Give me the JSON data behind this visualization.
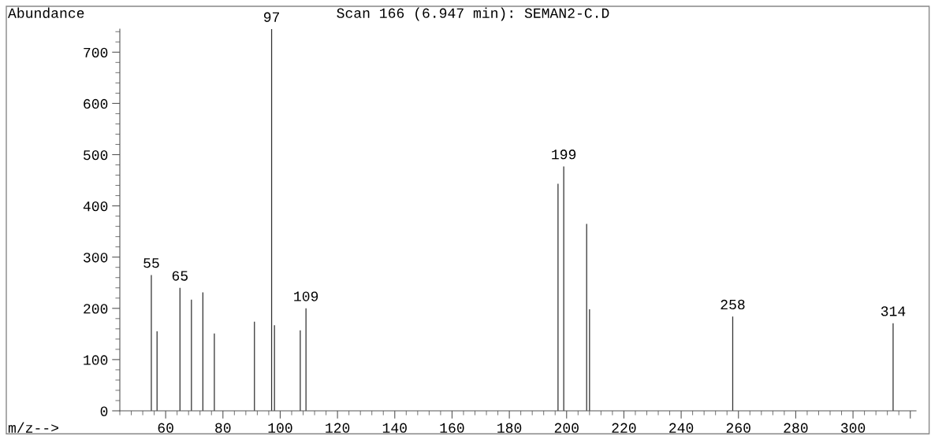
{
  "chart_data": {
    "type": "bar",
    "title": "Scan 166 (6.947 min): SEMAN2-C.D",
    "xlabel": "m/z-->",
    "ylabel": "Abundance",
    "x": [
      55,
      57,
      65,
      69,
      73,
      77,
      91,
      97,
      98,
      107,
      109,
      197,
      199,
      207,
      208,
      258,
      314
    ],
    "values": [
      265,
      155,
      240,
      217,
      231,
      151,
      174,
      745,
      167,
      157,
      200,
      443,
      477,
      365,
      198,
      184,
      171
    ],
    "color": "#333333",
    "xlim": [
      44,
      322
    ],
    "xticks": [
      60,
      80,
      100,
      120,
      140,
      160,
      180,
      200,
      220,
      240,
      260,
      280,
      300,
      {
        "value": 320,
        "label": null
      }
    ],
    "ylim": [
      0,
      745
    ],
    "yticks": [
      0,
      100,
      200,
      300,
      400,
      500,
      600,
      700
    ],
    "grid": false,
    "legend": false,
    "annotations": [
      {
        "text": "55",
        "x": 55,
        "y": 265
      },
      {
        "text": "65",
        "x": 65,
        "y": 240
      },
      {
        "text": "97",
        "x": 97,
        "y": 745
      },
      {
        "text": "109",
        "x": 109,
        "y": 200
      },
      {
        "text": "199",
        "x": 199,
        "y": 477
      },
      {
        "text": "258",
        "x": 258,
        "y": 184
      },
      {
        "text": "314",
        "x": 314,
        "y": 171
      }
    ]
  }
}
